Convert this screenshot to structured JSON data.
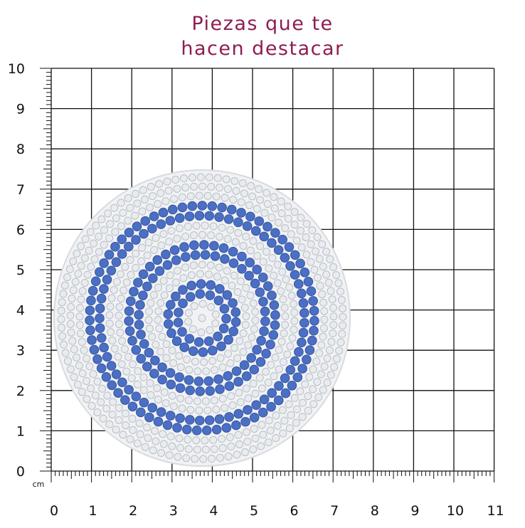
{
  "title": [
    "Piezas que te",
    "hacen destacar"
  ],
  "ruler": {
    "unit": "cm",
    "x_labels": [
      0,
      1,
      2,
      3,
      4,
      5,
      6,
      7,
      8,
      9,
      10,
      11
    ],
    "y_labels": [
      0,
      1,
      2,
      3,
      4,
      5,
      6,
      7,
      8,
      9,
      10
    ]
  }
}
